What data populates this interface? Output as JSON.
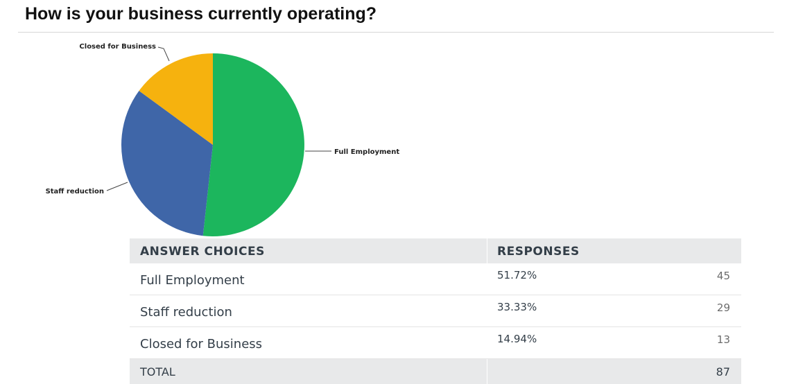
{
  "chart_data": {
    "type": "pie",
    "title": "How is your business currently operating?",
    "slices": [
      {
        "label": "Full Employment",
        "value": 51.72,
        "color": "#1cb65d"
      },
      {
        "label": "Staff reduction",
        "value": 33.33,
        "color": "#3f66a8"
      },
      {
        "label": "Closed for Business",
        "value": 14.94,
        "color": "#f6b20e"
      }
    ]
  },
  "table": {
    "headers": {
      "choice": "ANSWER CHOICES",
      "responses": "RESPONSES"
    },
    "rows": [
      {
        "choice": "Full Employment",
        "pct": "51.72%",
        "count": "45"
      },
      {
        "choice": "Staff reduction",
        "pct": "33.33%",
        "count": "29"
      },
      {
        "choice": "Closed for Business",
        "pct": "14.94%",
        "count": "13"
      }
    ],
    "total": {
      "label": "TOTAL",
      "count": "87"
    }
  }
}
